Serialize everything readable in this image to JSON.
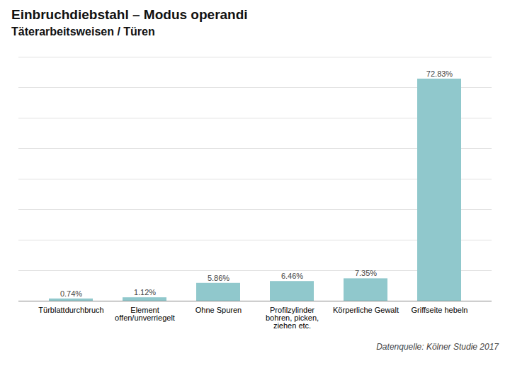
{
  "chart_data": {
    "type": "bar",
    "title": "Einbruchdiebstahl – Modus operandi",
    "subtitle": "Täterarbeitsweisen / Türen",
    "annotations": [
      "Datenquelle: Kölner Studie 2017"
    ],
    "categories": [
      "Türblattdurchbruch",
      "Element\noffen/unverriegelt",
      "Ohne Spuren",
      "Profilzylinder\nbohren, picken,\nziehen etc.",
      "Körperliche Gewalt",
      "Griffseite hebeln"
    ],
    "values": [
      0.74,
      1.12,
      5.86,
      6.46,
      7.35,
      72.83
    ],
    "value_labels": [
      "0.74%",
      "1.12%",
      "5.86%",
      "6.46%",
      "7.35%",
      "72.83%"
    ],
    "color": "#90c8cc",
    "ylim": [
      0,
      80
    ],
    "yticks": [
      0,
      10,
      20,
      30,
      40,
      50,
      60,
      70,
      80
    ],
    "grid": true,
    "data_labels": true,
    "tick_labels": "x"
  }
}
